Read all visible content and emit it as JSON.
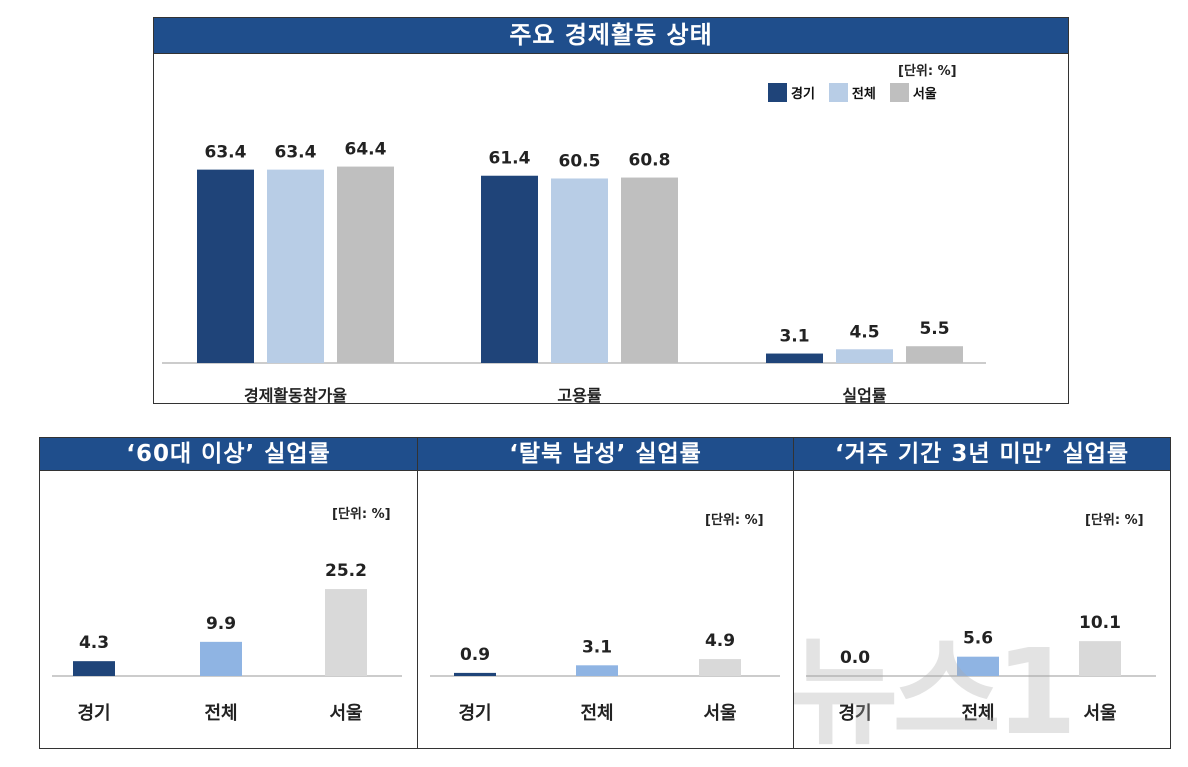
{
  "colors": {
    "title_bg": "#1f4e8c",
    "gyeonggi": "#1f4479",
    "total_main": "#b8cde6",
    "total_small": "#8fb4e3",
    "seoul_main": "#bfbfbf",
    "seoul_small": "#d9d9d9"
  },
  "watermark": {
    "text": "뉴스1"
  },
  "chart_data": [
    {
      "id": "main",
      "type": "bar",
      "title": "주요 경제활동 상태",
      "unit_label": "[단위: %]",
      "legend_position": "top-right",
      "categories": [
        "경제활동참가율",
        "고용률",
        "실업률"
      ],
      "series": [
        {
          "name": "경기",
          "values": [
            63.4,
            61.4,
            3.1
          ]
        },
        {
          "name": "전체",
          "values": [
            63.4,
            60.5,
            4.5
          ]
        },
        {
          "name": "서울",
          "values": [
            64.4,
            60.8,
            5.5
          ]
        }
      ],
      "ylim": [
        0,
        70
      ]
    },
    {
      "id": "age60",
      "type": "bar",
      "title": "‘60대 이상’  실업률",
      "unit_label": "[단위: %]",
      "categories": [
        "경기",
        "전체",
        "서울"
      ],
      "values": [
        4.3,
        9.9,
        25.2
      ],
      "value_labels": [
        "4.3",
        "9.9",
        "25.2"
      ],
      "ylim": [
        0,
        40
      ]
    },
    {
      "id": "defector",
      "type": "bar",
      "title": "‘탈북 남성’  실업률",
      "unit_label": "[단위: %]",
      "categories": [
        "경기",
        "전체",
        "서울"
      ],
      "values": [
        0.9,
        3.1,
        4.9
      ],
      "value_labels": [
        "0.9",
        "3.1",
        "4.9"
      ],
      "ylim": [
        0,
        40
      ]
    },
    {
      "id": "residence",
      "type": "bar",
      "title": "‘거주 기간 3년 미만’  실업률",
      "unit_label": "[단위: %]",
      "categories": [
        "경기",
        "전체",
        "서울"
      ],
      "values": [
        0.0,
        5.6,
        10.1
      ],
      "value_labels": [
        "0.0",
        "5.6",
        "10.1"
      ],
      "ylim": [
        0,
        40
      ]
    }
  ]
}
